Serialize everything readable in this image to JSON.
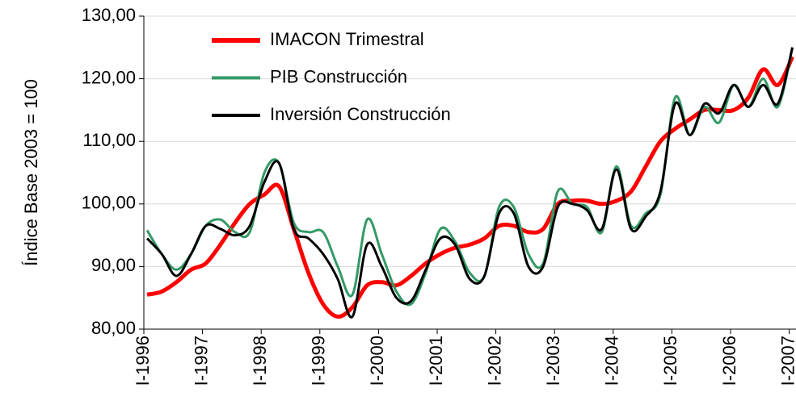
{
  "chart_data": {
    "type": "line",
    "y_label": "Índice Base 2003 = 100",
    "categories": [
      "I-1996",
      null,
      null,
      null,
      "I-1997",
      null,
      null,
      null,
      "I-1998",
      null,
      null,
      null,
      "I-1999",
      null,
      null,
      null,
      "I-2000",
      null,
      null,
      null,
      "I-2001",
      null,
      null,
      null,
      "I-2002",
      null,
      null,
      null,
      "I-2003",
      null,
      null,
      null,
      "I-2004",
      null,
      null,
      null,
      "I-2005",
      null,
      null,
      null,
      "I-2006",
      null,
      null,
      null,
      "I-2007"
    ],
    "series": [
      {
        "name": "IMACON Trimestral",
        "color": "#ff0000",
        "width": 5,
        "values": [
          85.5,
          86,
          87.5,
          89.5,
          90.5,
          93.5,
          97,
          100,
          101.5,
          102.8,
          96,
          89,
          84,
          82,
          83.5,
          87,
          87.5,
          87,
          88.5,
          90.5,
          92,
          93,
          93.5,
          94.5,
          96.5,
          96.5,
          95.5,
          96,
          100,
          100.5,
          100.5,
          100,
          100.5,
          102,
          106,
          110,
          112,
          113.5,
          115,
          115,
          115,
          117,
          121.5,
          119,
          123.5
        ]
      },
      {
        "name": "PIB Construcción",
        "color": "#339966",
        "width": 3,
        "values": [
          95.8,
          92,
          89.5,
          92,
          96.5,
          97.5,
          95.5,
          95.5,
          105,
          106.5,
          97,
          95.5,
          95.5,
          90,
          85.5,
          97.5,
          92,
          86,
          84,
          89,
          96,
          94,
          89,
          88.5,
          99.5,
          99.5,
          92,
          90.5,
          102,
          100,
          99.5,
          95.5,
          106,
          96.5,
          98.5,
          101.5,
          117,
          111,
          115.5,
          113,
          119,
          115.5,
          120,
          115.5,
          125
        ]
      },
      {
        "name": "Inversión Construcción",
        "color": "#000000",
        "width": 3,
        "values": [
          94.5,
          92,
          88.5,
          92,
          96.5,
          96,
          95,
          96.5,
          103.5,
          106.5,
          96,
          94.5,
          92,
          88,
          82,
          93.5,
          90,
          85,
          84.5,
          89.5,
          94.5,
          93.5,
          88,
          88.5,
          98.5,
          98.5,
          90,
          90,
          99.5,
          100,
          99,
          96,
          105.5,
          96,
          98,
          102,
          116,
          111,
          116,
          114.5,
          119,
          115.5,
          119,
          116,
          125
        ]
      }
    ],
    "ylim": [
      80,
      130
    ],
    "yticks": [
      {
        "value": 80,
        "label": "80,00"
      },
      {
        "value": 90,
        "label": "90,00"
      },
      {
        "value": 100,
        "label": "100,00"
      },
      {
        "value": 110,
        "label": "110,00"
      },
      {
        "value": 120,
        "label": "120,00"
      },
      {
        "value": 130,
        "label": "130,00"
      }
    ],
    "grid": true,
    "legend": "upper left"
  }
}
